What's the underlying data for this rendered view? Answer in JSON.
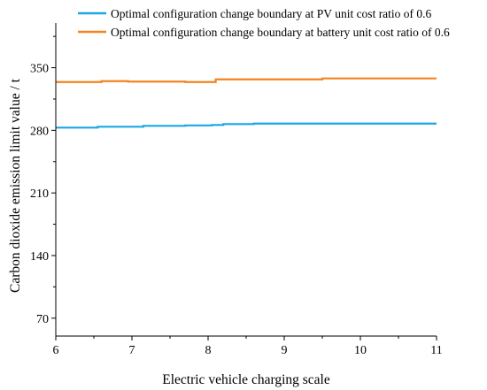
{
  "chart_data": {
    "type": "line",
    "title": "",
    "xlabel": "Electric vehicle charging scale",
    "ylabel": "Carbon dioxide emission limit value / t",
    "xlim": [
      6,
      11
    ],
    "ylim": [
      50,
      400
    ],
    "xticks": [
      6,
      7,
      8,
      9,
      10,
      11
    ],
    "yticks": [
      70,
      140,
      210,
      280,
      350
    ],
    "grid": false,
    "legend_position": "top",
    "series": [
      {
        "name": "Optimal configuration change boundary at PV unit cost ratio of 0.6",
        "color": "#1aa7e6",
        "step": true,
        "x": [
          6.0,
          6.55,
          7.15,
          7.7,
          8.05,
          8.2,
          8.6,
          11.0
        ],
        "y": [
          283,
          284,
          285,
          285.5,
          286,
          287,
          287.5,
          287.5
        ]
      },
      {
        "name": "Optimal configuration change boundary at battery unit cost ratio of 0.6",
        "color": "#f5821f",
        "step": true,
        "x": [
          6.0,
          6.6,
          6.95,
          7.15,
          7.7,
          8.1,
          9.5,
          11.0
        ],
        "y": [
          334,
          335,
          334.5,
          334.5,
          334,
          337,
          338,
          338
        ]
      }
    ]
  }
}
